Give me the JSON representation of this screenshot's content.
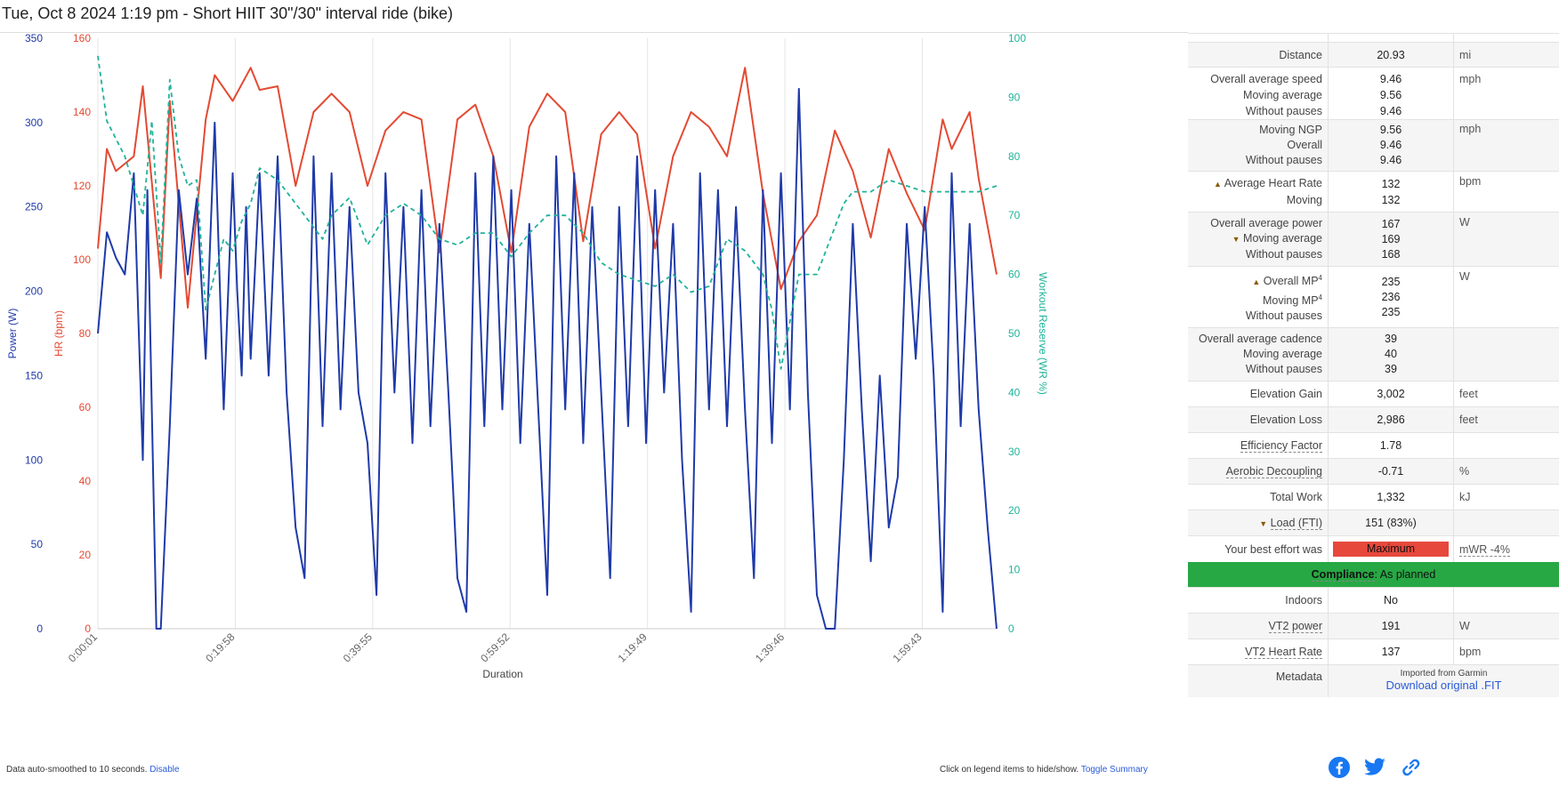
{
  "page": {
    "title": "Tue, Oct 8 2024 1:19 pm - Short HIIT 30\"/30\" interval ride (bike)"
  },
  "chart_data": {
    "type": "line",
    "xlabel": "Duration",
    "x_range_seconds": [
      1,
      7830
    ],
    "x_ticks": [
      "0:00:01",
      "0:19:58",
      "0:39:55",
      "0:59:52",
      "1:19:49",
      "1:39:46",
      "1:59:43"
    ],
    "axes": {
      "power": {
        "label": "Power (W)",
        "ylim": [
          0,
          350
        ],
        "ticks": [
          0,
          50,
          100,
          150,
          200,
          250,
          300,
          350
        ],
        "color": "#1f3aa8"
      },
      "hr": {
        "label": "HR (bpm)",
        "ylim": [
          0,
          160
        ],
        "ticks": [
          0,
          20,
          40,
          60,
          80,
          100,
          120,
          140,
          160
        ],
        "color": "#e34a33"
      },
      "wr": {
        "label": "Workout Reserve (WR %)",
        "ylim": [
          0,
          100
        ],
        "ticks": [
          0,
          10,
          20,
          30,
          40,
          50,
          60,
          70,
          80,
          90,
          100
        ],
        "color": "#1fb39a"
      }
    },
    "series": [
      {
        "axis": "hr",
        "color": "#e34a33",
        "style": "solid",
        "x": [
          0.0,
          0.01,
          0.02,
          0.04,
          0.05,
          0.07,
          0.08,
          0.1,
          0.12,
          0.13,
          0.15,
          0.17,
          0.18,
          0.2,
          0.22,
          0.24,
          0.26,
          0.28,
          0.3,
          0.32,
          0.34,
          0.36,
          0.38,
          0.4,
          0.42,
          0.44,
          0.46,
          0.48,
          0.5,
          0.52,
          0.54,
          0.56,
          0.58,
          0.6,
          0.62,
          0.64,
          0.66,
          0.68,
          0.7,
          0.72,
          0.74,
          0.76,
          0.78,
          0.8,
          0.82,
          0.84,
          0.86,
          0.88,
          0.9,
          0.92,
          0.94,
          0.95,
          0.97,
          0.98,
          1.0
        ],
        "y": [
          103,
          130,
          124,
          128,
          147,
          95,
          143,
          87,
          138,
          150,
          143,
          152,
          146,
          147,
          120,
          140,
          145,
          140,
          120,
          135,
          140,
          138,
          102,
          138,
          142,
          128,
          102,
          136,
          145,
          140,
          105,
          134,
          140,
          134,
          103,
          128,
          140,
          136,
          128,
          152,
          118,
          92,
          105,
          112,
          135,
          124,
          106,
          130,
          118,
          108,
          138,
          130,
          140,
          122,
          96
        ]
      },
      {
        "axis": "power",
        "color": "#1f3aa8",
        "style": "solid",
        "x": [
          0.0,
          0.01,
          0.02,
          0.03,
          0.04,
          0.05,
          0.055,
          0.06,
          0.065,
          0.07,
          0.08,
          0.09,
          0.1,
          0.11,
          0.12,
          0.13,
          0.14,
          0.15,
          0.155,
          0.16,
          0.165,
          0.17,
          0.18,
          0.19,
          0.2,
          0.21,
          0.22,
          0.23,
          0.24,
          0.25,
          0.26,
          0.27,
          0.28,
          0.29,
          0.3,
          0.31,
          0.32,
          0.33,
          0.34,
          0.35,
          0.36,
          0.37,
          0.38,
          0.39,
          0.4,
          0.41,
          0.42,
          0.43,
          0.44,
          0.45,
          0.46,
          0.47,
          0.48,
          0.49,
          0.5,
          0.51,
          0.52,
          0.53,
          0.54,
          0.55,
          0.56,
          0.57,
          0.58,
          0.59,
          0.6,
          0.61,
          0.62,
          0.63,
          0.64,
          0.65,
          0.66,
          0.67,
          0.68,
          0.69,
          0.7,
          0.71,
          0.72,
          0.73,
          0.74,
          0.75,
          0.76,
          0.77,
          0.78,
          0.79,
          0.8,
          0.81,
          0.82,
          0.83,
          0.84,
          0.85,
          0.86,
          0.87,
          0.88,
          0.89,
          0.9,
          0.91,
          0.92,
          0.93,
          0.94,
          0.95,
          0.96,
          0.97,
          0.98,
          0.99,
          1.0
        ],
        "y": [
          175,
          235,
          220,
          210,
          270,
          100,
          260,
          130,
          0,
          0,
          120,
          260,
          210,
          255,
          160,
          300,
          130,
          270,
          200,
          150,
          250,
          160,
          270,
          150,
          280,
          140,
          60,
          30,
          280,
          120,
          270,
          130,
          250,
          140,
          110,
          20,
          270,
          140,
          250,
          110,
          260,
          120,
          240,
          140,
          30,
          10,
          270,
          120,
          280,
          130,
          260,
          110,
          240,
          130,
          20,
          280,
          130,
          270,
          110,
          250,
          140,
          30,
          250,
          120,
          280,
          110,
          260,
          140,
          240,
          100,
          10,
          270,
          130,
          260,
          120,
          250,
          130,
          30,
          260,
          110,
          270,
          130,
          320,
          140,
          20,
          0,
          0,
          100,
          240,
          130,
          40,
          150,
          60,
          90,
          240,
          160,
          250,
          150,
          10,
          270,
          120,
          240,
          130,
          60,
          0
        ]
      },
      {
        "axis": "wr",
        "color": "#1fb39a",
        "style": "dashed",
        "x": [
          0.0,
          0.01,
          0.03,
          0.05,
          0.06,
          0.07,
          0.08,
          0.09,
          0.1,
          0.11,
          0.12,
          0.14,
          0.15,
          0.16,
          0.17,
          0.18,
          0.2,
          0.22,
          0.24,
          0.25,
          0.26,
          0.28,
          0.3,
          0.32,
          0.34,
          0.36,
          0.38,
          0.4,
          0.42,
          0.44,
          0.46,
          0.48,
          0.5,
          0.52,
          0.54,
          0.56,
          0.58,
          0.6,
          0.62,
          0.64,
          0.66,
          0.68,
          0.7,
          0.72,
          0.74,
          0.75,
          0.76,
          0.78,
          0.8,
          0.82,
          0.83,
          0.84,
          0.85,
          0.86,
          0.87,
          0.88,
          0.9,
          0.92,
          0.94,
          0.96,
          0.98,
          1.0
        ],
        "y": [
          97,
          86,
          80,
          70,
          86,
          62,
          93,
          80,
          75,
          76,
          54,
          66,
          64,
          69,
          72,
          78,
          76,
          72,
          68,
          66,
          70,
          73,
          65,
          70,
          72,
          70,
          66,
          65,
          67,
          67,
          63,
          67,
          70,
          70,
          67,
          62,
          60,
          59,
          58,
          60,
          57,
          58,
          66,
          64,
          60,
          54,
          44,
          60,
          60,
          68,
          72,
          74,
          74,
          74,
          75,
          76,
          75,
          74,
          74,
          74,
          74,
          75
        ]
      }
    ]
  },
  "footer": {
    "smoothing_text": "Data auto-smoothed to 10 seconds.",
    "disable_link": "Disable",
    "legend_hint": "Click on legend items to hide/show.",
    "toggle_link": "Toggle Summary"
  },
  "summary": {
    "distance": {
      "label": "Distance",
      "value": "20.93",
      "unit": "mi"
    },
    "speed": {
      "labels": [
        "Overall average speed",
        "Moving average",
        "Without pauses"
      ],
      "values": [
        "9.46",
        "9.56",
        "9.46"
      ],
      "unit": "mph"
    },
    "ngp": {
      "labels": [
        "Moving NGP",
        "Overall",
        "Without pauses"
      ],
      "values": [
        "9.56",
        "9.46",
        "9.46"
      ],
      "unit": "mph"
    },
    "hr": {
      "labels": [
        "Average Heart Rate",
        "Moving"
      ],
      "values": [
        "132",
        "132"
      ],
      "unit": "bpm"
    },
    "power": {
      "labels": [
        "Overall average power",
        "Moving average",
        "Without pauses"
      ],
      "values": [
        "167",
        "169",
        "168"
      ],
      "unit": "W"
    },
    "mp": {
      "labels": [
        "Overall MP",
        "Moving MP",
        "Without pauses"
      ],
      "values": [
        "235",
        "236",
        "235"
      ],
      "unit": "W",
      "footnote": "4"
    },
    "cadence": {
      "labels": [
        "Overall average cadence",
        "Moving average",
        "Without pauses"
      ],
      "values": [
        "39",
        "40",
        "39"
      ]
    },
    "elev_gain": {
      "label": "Elevation Gain",
      "value": "3,002",
      "unit": "feet"
    },
    "elev_loss": {
      "label": "Elevation Loss",
      "value": "2,986",
      "unit": "feet"
    },
    "ef": {
      "label": "Efficiency Factor",
      "value": "1.78"
    },
    "decoupling": {
      "label": "Aerobic Decoupling",
      "value": "-0.71",
      "unit": "%"
    },
    "work": {
      "label": "Total Work",
      "value": "1,332",
      "unit": "kJ"
    },
    "load": {
      "label": "Load (FTI)",
      "value": "151 (83%)"
    },
    "best": {
      "label": "Your best effort was",
      "badge": "Maximum",
      "extra": "mWR -4%",
      "badge_color": "#e7483c"
    },
    "compliance": {
      "label": "Compliance",
      "text": ": As planned",
      "color": "#27a844"
    },
    "indoors": {
      "label": "Indoors",
      "value": "No"
    },
    "vt2_power": {
      "label": "VT2 power",
      "value": "191",
      "unit": "W"
    },
    "vt2_hr": {
      "label": "VT2 Heart Rate",
      "value": "137",
      "unit": "bpm"
    },
    "metadata": {
      "label": "Metadata",
      "imported": "Imported from Garmin",
      "download": "Download original .FIT"
    }
  },
  "share": {
    "icons": [
      "facebook-icon",
      "twitter-icon",
      "link-icon"
    ],
    "color": "#1877f2"
  }
}
